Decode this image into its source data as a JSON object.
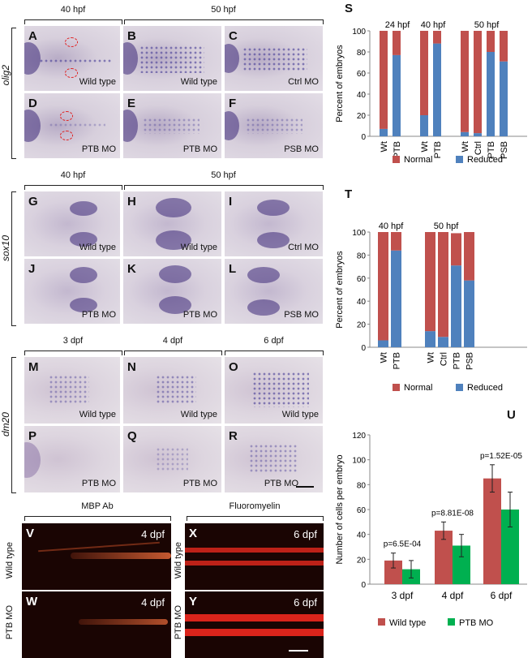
{
  "figure": {
    "olig2": {
      "gene": "olig2",
      "headers": [
        "40 hpf",
        "50 hpf"
      ],
      "panels": [
        {
          "letter": "A",
          "label": "Wild type"
        },
        {
          "letter": "B",
          "label": "Wild type"
        },
        {
          "letter": "C",
          "label": "Ctrl MO"
        },
        {
          "letter": "D",
          "label": "PTB MO"
        },
        {
          "letter": "E",
          "label": "PTB MO"
        },
        {
          "letter": "F",
          "label": "PSB MO"
        }
      ]
    },
    "sox10": {
      "gene": "sox10",
      "headers": [
        "40 hpf",
        "50 hpf"
      ],
      "panels": [
        {
          "letter": "G",
          "label": "Wild type"
        },
        {
          "letter": "H",
          "label": "Wild type"
        },
        {
          "letter": "I",
          "label": "Ctrl MO"
        },
        {
          "letter": "J",
          "label": "PTB MO"
        },
        {
          "letter": "K",
          "label": "PTB MO"
        },
        {
          "letter": "L",
          "label": "PSB MO"
        }
      ]
    },
    "dm20": {
      "gene": "dm20",
      "headers": [
        "3 dpf",
        "4 dpf",
        "6 dpf"
      ],
      "panels": [
        {
          "letter": "M",
          "label": "Wild type"
        },
        {
          "letter": "N",
          "label": "Wild type"
        },
        {
          "letter": "O",
          "label": "Wild type"
        },
        {
          "letter": "P",
          "label": "PTB MO"
        },
        {
          "letter": "Q",
          "label": "PTB MO"
        },
        {
          "letter": "R",
          "label": "PTB MO"
        }
      ]
    },
    "fluor": {
      "headers": [
        "MBP Ab",
        "Fluoromyelin"
      ],
      "row_labels": [
        "Wild type",
        "PTB MO"
      ],
      "panels": [
        {
          "letter": "V",
          "age": "4 dpf"
        },
        {
          "letter": "X",
          "age": "6 dpf"
        },
        {
          "letter": "W",
          "age": "4 dpf"
        },
        {
          "letter": "Y",
          "age": "6 dpf"
        }
      ]
    }
  },
  "chart_data": [
    {
      "panel": "S",
      "type": "bar",
      "stacked": true,
      "groups": [
        "24 hpf",
        "40 hpf",
        "50 hpf"
      ],
      "categories": [
        "Wt",
        "PTB",
        "Wt",
        "PTB",
        "Wt",
        "Ctrl",
        "PTB",
        "PSB"
      ],
      "series": [
        {
          "name": "Normal",
          "color": "#c0504d",
          "values": [
            93,
            23,
            80,
            12,
            96,
            97,
            20,
            29
          ]
        },
        {
          "name": "Reduced",
          "color": "#4f81bd",
          "values": [
            7,
            77,
            20,
            88,
            4,
            3,
            80,
            71
          ]
        }
      ],
      "ylabel": "Percent of embryos",
      "ylim": [
        0,
        100
      ],
      "yticks": [
        0,
        20,
        40,
        60,
        80,
        100
      ],
      "legend": "bottom"
    },
    {
      "panel": "T",
      "type": "bar",
      "stacked": true,
      "groups": [
        "40 hpf",
        "50 hpf"
      ],
      "categories": [
        "Wt",
        "PTB",
        "Wt",
        "Ctrl",
        "PTB",
        "PSB"
      ],
      "series": [
        {
          "name": "Normal",
          "color": "#c0504d",
          "values": [
            94,
            16,
            86,
            91,
            28,
            42
          ]
        },
        {
          "name": "Reduced",
          "color": "#4f81bd",
          "values": [
            6,
            84,
            14,
            9,
            71,
            58
          ]
        }
      ],
      "ylabel": "Percent of embryos",
      "ylim": [
        0,
        100
      ],
      "yticks": [
        0,
        20,
        40,
        60,
        80,
        100
      ],
      "legend": "bottom"
    },
    {
      "panel": "U",
      "type": "bar",
      "categories": [
        "3 dpf",
        "4 dpf",
        "6 dpf"
      ],
      "series": [
        {
          "name": "Wild type",
          "color": "#c0504d",
          "values": [
            19,
            43,
            85
          ],
          "errors": [
            6,
            7,
            11
          ]
        },
        {
          "name": "PTB MO",
          "color": "#00b050",
          "values": [
            12,
            31,
            60
          ],
          "errors": [
            7,
            9,
            14
          ]
        }
      ],
      "pvalues": [
        "p=6.5E-04",
        "p=8.81E-08",
        "p=1.52E-05"
      ],
      "ylabel": "Number of cells per embryo",
      "ylim": [
        0,
        120
      ],
      "yticks": [
        0,
        20,
        40,
        60,
        80,
        100,
        120
      ],
      "legend": "bottom"
    }
  ]
}
